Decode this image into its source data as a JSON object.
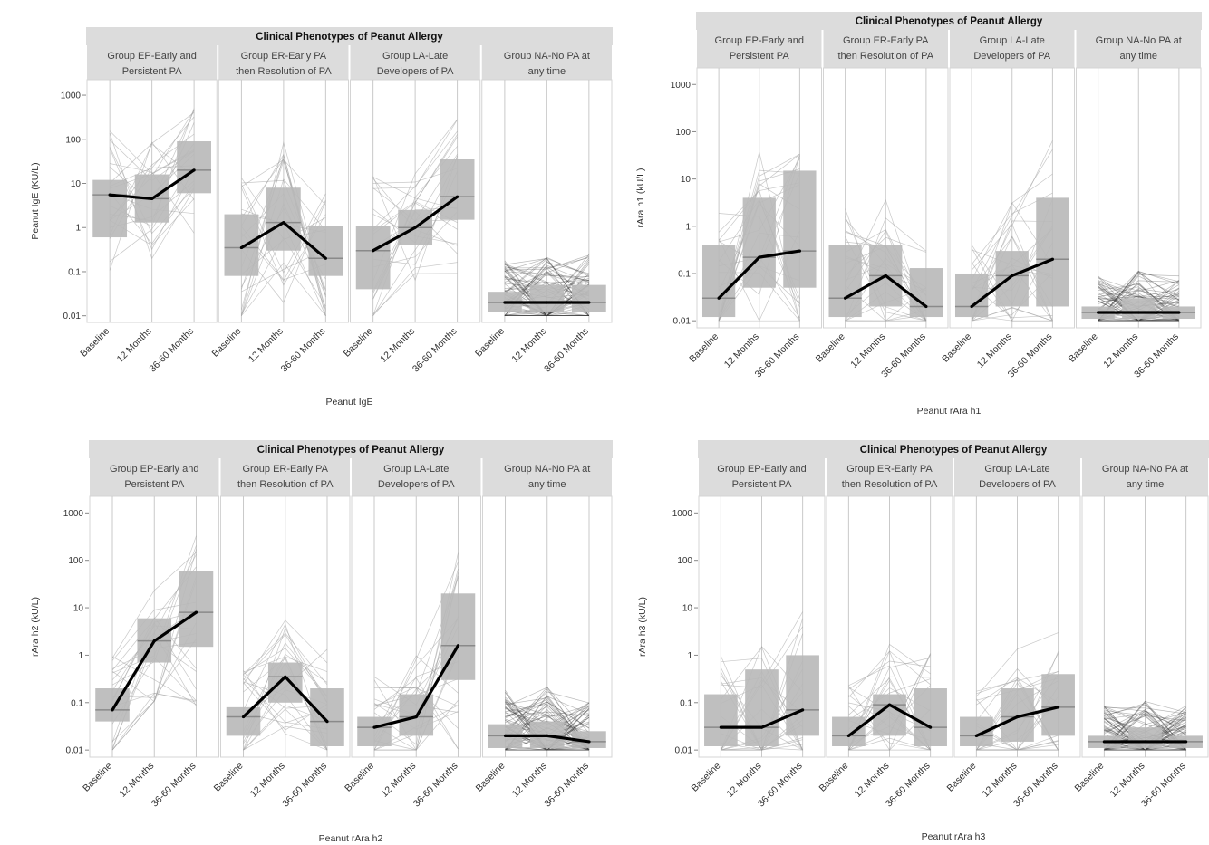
{
  "figure_title_shared": "Clinical Phenotypes of Peanut Allergy",
  "groups": [
    {
      "line1": "Group EP-Early and",
      "line2": "Persistent PA"
    },
    {
      "line1": "Group ER-Early PA",
      "line2": "then Resolution of PA"
    },
    {
      "line1": "Group LA-Late",
      "line2": "Developers of PA"
    },
    {
      "line1": "Group NA-No PA at",
      "line2": "any time"
    }
  ],
  "time_points": [
    "Baseline",
    "12 Months",
    "36-60 Months"
  ],
  "y_tick_labels": [
    "1000",
    "100",
    "10",
    "1",
    "0.1",
    "0.01"
  ],
  "chart_data": [
    {
      "type": "line",
      "title": "Clinical Phenotypes of Peanut Allergy",
      "xlabel": "Peanut IgE",
      "ylabel": "Peanut IgE (KU/L)",
      "yscale": "log",
      "ylim": [
        0.01,
        1000
      ],
      "categories": [
        "Baseline",
        "12 Months",
        "36-60 Months"
      ],
      "series": [
        {
          "name": "Group EP-Early and Persistent PA",
          "values": [
            5.5,
            4.5,
            20
          ],
          "box": [
            {
              "q1": 0.6,
              "med": 5.5,
              "q3": 12
            },
            {
              "q1": 1.3,
              "med": 4.5,
              "q3": 16
            },
            {
              "q1": 6,
              "med": 20,
              "q3": 90
            }
          ]
        },
        {
          "name": "Group ER-Early PA then Resolution of PA",
          "values": [
            0.35,
            1.3,
            0.2
          ],
          "box": [
            {
              "q1": 0.08,
              "med": 0.35,
              "q3": 2
            },
            {
              "q1": 0.3,
              "med": 1.3,
              "q3": 8
            },
            {
              "q1": 0.08,
              "med": 0.2,
              "q3": 1.1
            }
          ]
        },
        {
          "name": "Group LA-Late Developers of PA",
          "values": [
            0.3,
            1,
            5
          ],
          "box": [
            {
              "q1": 0.04,
              "med": 0.3,
              "q3": 1.1
            },
            {
              "q1": 0.4,
              "med": 1,
              "q3": 2.5
            },
            {
              "q1": 1.5,
              "med": 5,
              "q3": 35
            }
          ]
        },
        {
          "name": "Group NA-No PA at any time",
          "values": [
            0.02,
            0.02,
            0.02
          ],
          "box": [
            {
              "q1": 0.012,
              "med": 0.02,
              "q3": 0.035
            },
            {
              "q1": 0.012,
              "med": 0.02,
              "q3": 0.05
            },
            {
              "q1": 0.012,
              "med": 0.02,
              "q3": 0.05
            }
          ]
        }
      ]
    },
    {
      "type": "line",
      "title": "Clinical Phenotypes of Peanut Allergy",
      "xlabel": "Peanut rAra h1",
      "ylabel": "rAra h1 (kU/L)",
      "yscale": "log",
      "ylim": [
        0.01,
        1000
      ],
      "categories": [
        "Baseline",
        "12 Months",
        "36-60 Months"
      ],
      "series": [
        {
          "name": "Group EP-Early and Persistent PA",
          "values": [
            0.03,
            0.22,
            0.3
          ],
          "box": [
            {
              "q1": 0.012,
              "med": 0.03,
              "q3": 0.4
            },
            {
              "q1": 0.05,
              "med": 0.22,
              "q3": 4
            },
            {
              "q1": 0.05,
              "med": 0.3,
              "q3": 15
            }
          ]
        },
        {
          "name": "Group ER-Early PA then Resolution of PA",
          "values": [
            0.03,
            0.09,
            0.02
          ],
          "box": [
            {
              "q1": 0.012,
              "med": 0.03,
              "q3": 0.4
            },
            {
              "q1": 0.02,
              "med": 0.09,
              "q3": 0.4
            },
            {
              "q1": 0.012,
              "med": 0.02,
              "q3": 0.13
            }
          ]
        },
        {
          "name": "Group LA-Late Developers of PA",
          "values": [
            0.02,
            0.09,
            0.2
          ],
          "box": [
            {
              "q1": 0.012,
              "med": 0.02,
              "q3": 0.1
            },
            {
              "q1": 0.02,
              "med": 0.09,
              "q3": 0.3
            },
            {
              "q1": 0.02,
              "med": 0.2,
              "q3": 4
            }
          ]
        },
        {
          "name": "Group NA-No PA at any time",
          "values": [
            0.015,
            0.015,
            0.015
          ],
          "box": [
            {
              "q1": 0.011,
              "med": 0.015,
              "q3": 0.02
            },
            {
              "q1": 0.011,
              "med": 0.015,
              "q3": 0.03
            },
            {
              "q1": 0.011,
              "med": 0.015,
              "q3": 0.02
            }
          ]
        }
      ]
    },
    {
      "type": "line",
      "title": "Clinical Phenotypes of Peanut Allergy",
      "xlabel": "Peanut rAra h2",
      "ylabel": "rAra h2 (kU/L)",
      "yscale": "log",
      "ylim": [
        0.01,
        1000
      ],
      "categories": [
        "Baseline",
        "12 Months",
        "36-60 Months"
      ],
      "series": [
        {
          "name": "Group EP-Early and Persistent PA",
          "values": [
            0.07,
            2,
            8
          ],
          "box": [
            {
              "q1": 0.04,
              "med": 0.07,
              "q3": 0.2
            },
            {
              "q1": 0.7,
              "med": 2,
              "q3": 6
            },
            {
              "q1": 1.5,
              "med": 8,
              "q3": 60
            }
          ]
        },
        {
          "name": "Group ER-Early PA then Resolution of PA",
          "values": [
            0.05,
            0.35,
            0.04
          ],
          "box": [
            {
              "q1": 0.02,
              "med": 0.05,
              "q3": 0.08
            },
            {
              "q1": 0.1,
              "med": 0.35,
              "q3": 0.7
            },
            {
              "q1": 0.012,
              "med": 0.04,
              "q3": 0.2
            }
          ]
        },
        {
          "name": "Group LA-Late Developers of PA",
          "values": [
            0.03,
            0.05,
            1.6
          ],
          "box": [
            {
              "q1": 0.012,
              "med": 0.03,
              "q3": 0.05
            },
            {
              "q1": 0.02,
              "med": 0.05,
              "q3": 0.15
            },
            {
              "q1": 0.3,
              "med": 1.6,
              "q3": 20
            }
          ]
        },
        {
          "name": "Group NA-No PA at any time",
          "values": [
            0.02,
            0.02,
            0.015
          ],
          "box": [
            {
              "q1": 0.011,
              "med": 0.02,
              "q3": 0.035
            },
            {
              "q1": 0.011,
              "med": 0.02,
              "q3": 0.04
            },
            {
              "q1": 0.011,
              "med": 0.015,
              "q3": 0.025
            }
          ]
        }
      ]
    },
    {
      "type": "line",
      "title": "Clinical Phenotypes of Peanut Allergy",
      "xlabel": "Peanut rAra h3",
      "ylabel": "rAra h3 (kU/L)",
      "yscale": "log",
      "ylim": [
        0.01,
        1000
      ],
      "categories": [
        "Baseline",
        "12 Months",
        "36-60 Months"
      ],
      "series": [
        {
          "name": "Group EP-Early and Persistent PA",
          "values": [
            0.03,
            0.03,
            0.07
          ],
          "box": [
            {
              "q1": 0.012,
              "med": 0.03,
              "q3": 0.15
            },
            {
              "q1": 0.012,
              "med": 0.03,
              "q3": 0.5
            },
            {
              "q1": 0.02,
              "med": 0.07,
              "q3": 1
            }
          ]
        },
        {
          "name": "Group ER-Early PA then Resolution of PA",
          "values": [
            0.02,
            0.09,
            0.03
          ],
          "box": [
            {
              "q1": 0.012,
              "med": 0.02,
              "q3": 0.05
            },
            {
              "q1": 0.02,
              "med": 0.09,
              "q3": 0.15
            },
            {
              "q1": 0.012,
              "med": 0.03,
              "q3": 0.2
            }
          ]
        },
        {
          "name": "Group LA-Late Developers of PA",
          "values": [
            0.02,
            0.05,
            0.08
          ],
          "box": [
            {
              "q1": 0.012,
              "med": 0.02,
              "q3": 0.05
            },
            {
              "q1": 0.015,
              "med": 0.05,
              "q3": 0.2
            },
            {
              "q1": 0.02,
              "med": 0.08,
              "q3": 0.4
            }
          ]
        },
        {
          "name": "Group NA-No PA at any time",
          "values": [
            0.015,
            0.015,
            0.015
          ],
          "box": [
            {
              "q1": 0.011,
              "med": 0.015,
              "q3": 0.02
            },
            {
              "q1": 0.011,
              "med": 0.015,
              "q3": 0.03
            },
            {
              "q1": 0.011,
              "med": 0.015,
              "q3": 0.02
            }
          ]
        }
      ]
    }
  ],
  "colors": {
    "strip_bg": "#dcdcdc",
    "box_fill": "#b8b8b8",
    "median_line": "#000000",
    "grid_line": "#c9c9c9",
    "trajectory": "#9a9a9a"
  }
}
